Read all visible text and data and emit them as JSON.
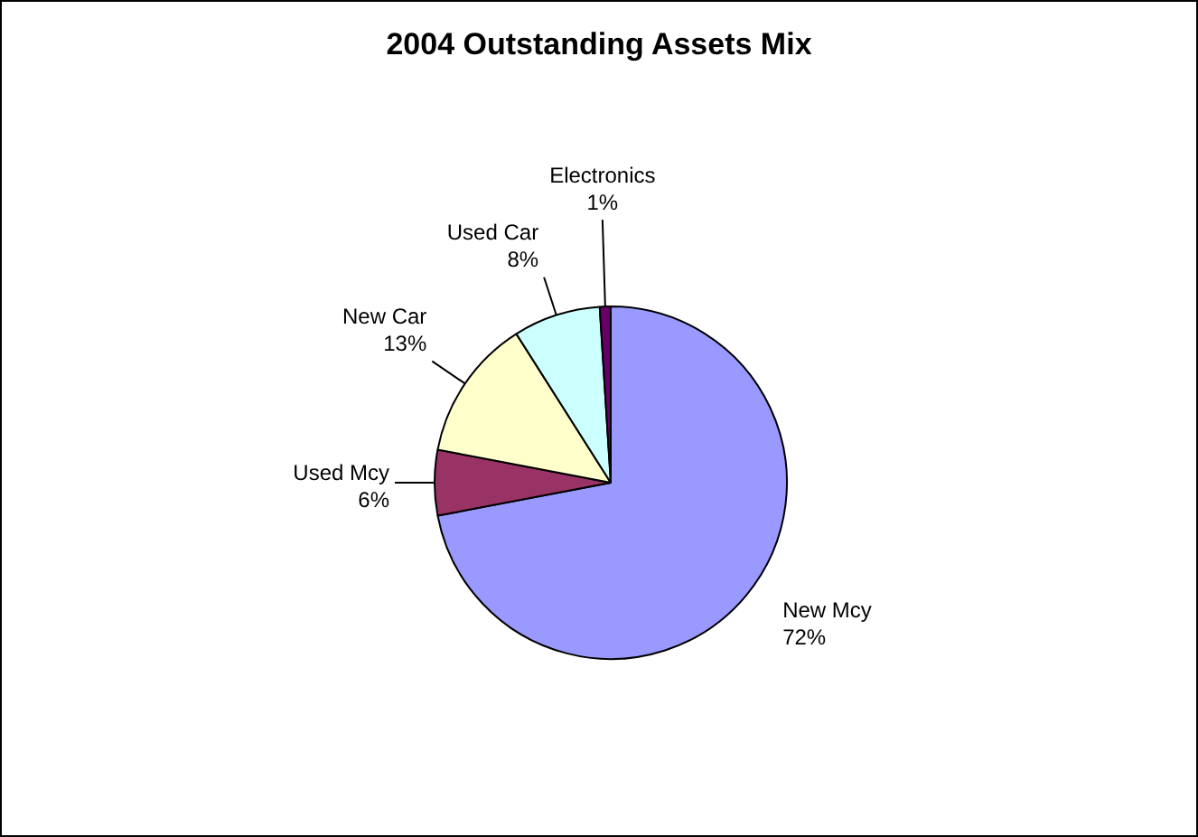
{
  "chart_data": {
    "type": "pie",
    "title": "2004 Outstanding Assets Mix",
    "categories": [
      "New Mcy",
      "Used Mcy",
      "New Car",
      "Used Car",
      "Electronics"
    ],
    "values": [
      72,
      6,
      13,
      8,
      1
    ],
    "value_labels": [
      "72%",
      "6%",
      "13%",
      "8%",
      "1%"
    ],
    "colors": [
      "#9999ff",
      "#993366",
      "#ffffcc",
      "#ccffff",
      "#660066"
    ],
    "legend": false
  }
}
